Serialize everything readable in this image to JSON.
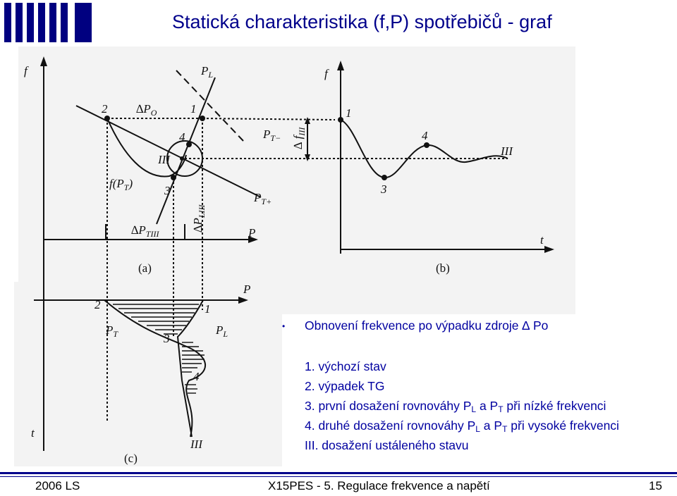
{
  "title": "Statická charakteristika (f,P) spotřebičů - graf",
  "bullets": {
    "heading": "Obnovení frekvence po výpadku zdroje ∆ Po",
    "items": [
      {
        "text": "1. výchozí stav"
      },
      {
        "text": "2. výpadek TG"
      },
      {
        "pre": "3. první dosažení rovnováhy P",
        "s1": "L",
        "mid": " a P",
        "s2": "T",
        "post": " při nízké frekvenci"
      },
      {
        "pre": "4. druhé dosažení rovnováhy P",
        "s1": "L",
        "mid": " a P",
        "s2": "T",
        "post": " při vysoké frekvenci"
      },
      {
        "text": "III. dosažení ustáleného stavu"
      }
    ]
  },
  "figure": {
    "labels": {
      "f": "f",
      "PL": "P",
      "PL_sub": "L",
      "dPO": "∆P",
      "dPO_sub": "O",
      "p1": "1",
      "p2": "2",
      "p3": "3",
      "p4": "4",
      "pIII": "III",
      "PTminus": "P",
      "PTminus_sub": "T−",
      "PTplus": "P",
      "PTplus_sub": "T+",
      "fPT": "f(P",
      "fPT_sub": "T",
      "fPT_close": ")",
      "dPLIII": "∆P",
      "dPLIII_sub": "LIII",
      "dPTIII": "∆P",
      "dPTIII_sub": "TIII",
      "P": "P",
      "a": "(a)",
      "fb": "f",
      "dfIII": "∆ f",
      "dfIII_sub": "III",
      "t": "t",
      "b": "(b)",
      "Pc": "P",
      "tc": "t",
      "c": "(c)",
      "PT_c": "P",
      "PT_c_sub": "T",
      "PL_c": "P",
      "PL_c_sub": "L"
    }
  },
  "footer": {
    "left": "2006 LS",
    "center": "X15PES - 5. Regulace frekvence a napětí",
    "page": "15"
  }
}
